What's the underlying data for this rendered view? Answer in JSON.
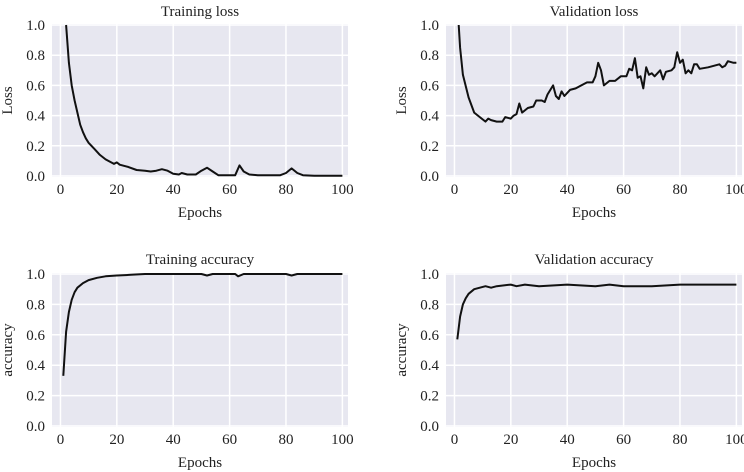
{
  "chart_data": [
    {
      "type": "line",
      "title": "Training loss",
      "xlabel": "Epochs",
      "ylabel": "Loss",
      "xlim": [
        -3,
        102
      ],
      "ylim": [
        0,
        1.0
      ],
      "xticks": [
        "0",
        "20",
        "40",
        "60",
        "80",
        "100"
      ],
      "yticks": [
        "0.0",
        "0.2",
        "0.4",
        "0.6",
        "0.8",
        "1.0"
      ],
      "grid": true,
      "x": [
        2,
        3,
        4,
        5,
        6,
        7,
        8,
        9,
        10,
        12,
        14,
        16,
        18,
        19,
        20,
        21,
        24,
        27,
        30,
        32,
        34,
        36,
        38,
        40,
        42,
        43,
        45,
        48,
        50,
        52,
        54,
        56,
        62,
        63.5,
        65,
        67,
        70,
        78,
        80,
        82,
        84,
        86,
        90,
        100
      ],
      "y": [
        1.0,
        0.75,
        0.6,
        0.5,
        0.42,
        0.34,
        0.29,
        0.25,
        0.22,
        0.18,
        0.14,
        0.11,
        0.09,
        0.08,
        0.09,
        0.075,
        0.06,
        0.04,
        0.035,
        0.03,
        0.035,
        0.045,
        0.035,
        0.015,
        0.01,
        0.02,
        0.01,
        0.01,
        0.035,
        0.055,
        0.03,
        0.005,
        0.005,
        0.07,
        0.03,
        0.01,
        0.005,
        0.005,
        0.02,
        0.05,
        0.02,
        0.005,
        0.002,
        0.002
      ]
    },
    {
      "type": "line",
      "title": "Validation loss",
      "xlabel": "Epochs",
      "ylabel": "Loss",
      "xlim": [
        -3,
        102
      ],
      "ylim": [
        0,
        1.0
      ],
      "xticks": [
        "0",
        "20",
        "40",
        "60",
        "80",
        "100"
      ],
      "yticks": [
        "0.0",
        "0.2",
        "0.4",
        "0.6",
        "0.8",
        "1.0"
      ],
      "grid": true,
      "x": [
        1.5,
        2,
        3,
        5,
        7,
        9,
        11,
        12,
        13,
        15,
        17,
        18,
        20,
        21,
        22,
        23,
        24,
        26,
        28,
        29,
        31,
        32,
        33,
        35,
        36,
        37,
        38,
        39,
        41,
        43,
        45,
        47,
        49,
        50,
        51,
        52,
        53,
        55,
        57,
        59,
        61,
        62,
        63,
        64,
        65,
        66,
        67,
        68,
        69,
        70,
        71,
        73,
        74,
        75,
        77,
        78,
        79,
        80,
        81,
        82,
        83,
        84,
        85,
        86,
        87,
        90,
        94,
        95,
        96,
        97,
        99,
        100
      ],
      "y": [
        1.0,
        0.85,
        0.67,
        0.52,
        0.42,
        0.39,
        0.36,
        0.38,
        0.37,
        0.36,
        0.36,
        0.39,
        0.38,
        0.4,
        0.41,
        0.48,
        0.42,
        0.45,
        0.46,
        0.5,
        0.5,
        0.49,
        0.54,
        0.6,
        0.53,
        0.51,
        0.56,
        0.53,
        0.57,
        0.58,
        0.6,
        0.62,
        0.62,
        0.66,
        0.75,
        0.7,
        0.6,
        0.63,
        0.63,
        0.66,
        0.66,
        0.71,
        0.7,
        0.78,
        0.65,
        0.66,
        0.58,
        0.72,
        0.67,
        0.68,
        0.66,
        0.7,
        0.64,
        0.69,
        0.7,
        0.72,
        0.82,
        0.75,
        0.77,
        0.68,
        0.7,
        0.68,
        0.74,
        0.74,
        0.71,
        0.72,
        0.74,
        0.72,
        0.73,
        0.76,
        0.75,
        0.75
      ]
    },
    {
      "type": "line",
      "title": "Training accuracy",
      "xlabel": "Epochs",
      "ylabel": "accuracy",
      "xlim": [
        -3,
        102
      ],
      "ylim": [
        0,
        1.0
      ],
      "xticks": [
        "0",
        "20",
        "40",
        "60",
        "80",
        "100"
      ],
      "yticks": [
        "0.0",
        "0.2",
        "0.4",
        "0.6",
        "0.8",
        "1.0"
      ],
      "grid": true,
      "x": [
        1,
        2,
        3,
        4,
        5,
        6,
        8,
        10,
        13,
        16,
        20,
        25,
        30,
        50,
        52,
        54,
        62,
        63,
        65,
        80,
        82,
        84,
        100
      ],
      "y": [
        0.33,
        0.62,
        0.75,
        0.83,
        0.88,
        0.91,
        0.94,
        0.96,
        0.975,
        0.985,
        0.99,
        0.995,
        1.0,
        1.0,
        0.99,
        1.0,
        1.0,
        0.985,
        1.0,
        1.0,
        0.99,
        1.0,
        1.0
      ]
    },
    {
      "type": "line",
      "title": "Validation accuracy",
      "xlabel": "Epochs",
      "ylabel": "accuracy",
      "xlim": [
        -3,
        102
      ],
      "ylim": [
        0,
        1.0
      ],
      "xticks": [
        "0",
        "20",
        "40",
        "60",
        "80",
        "100"
      ],
      "yticks": [
        "0.0",
        "0.2",
        "0.4",
        "0.6",
        "0.8",
        "1.0"
      ],
      "grid": true,
      "x": [
        1,
        2,
        3,
        4,
        5,
        7,
        9,
        11,
        13,
        15,
        20,
        22,
        25,
        30,
        40,
        50,
        55,
        60,
        70,
        80,
        90,
        100
      ],
      "y": [
        0.57,
        0.72,
        0.8,
        0.84,
        0.87,
        0.9,
        0.91,
        0.92,
        0.91,
        0.92,
        0.93,
        0.92,
        0.93,
        0.92,
        0.93,
        0.92,
        0.93,
        0.92,
        0.92,
        0.93,
        0.93,
        0.93
      ]
    }
  ],
  "colors": {
    "plot_bg": "#e7e7f0",
    "grid": "#ffffff",
    "line": "#111111"
  }
}
